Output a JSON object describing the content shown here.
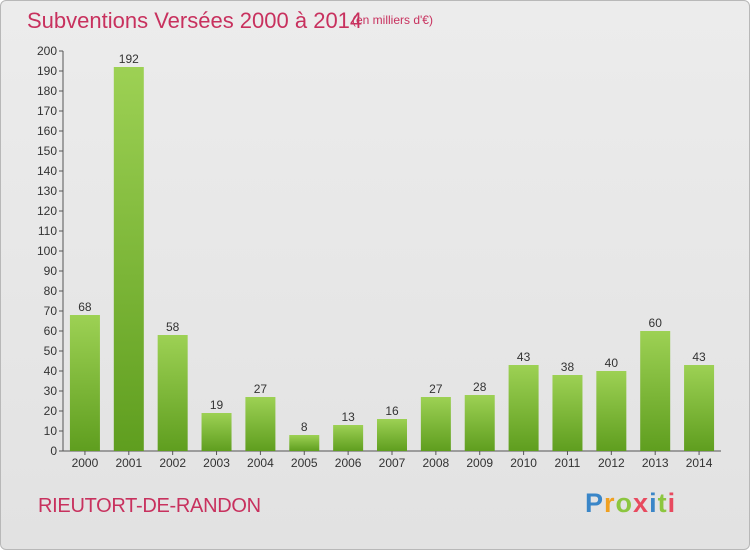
{
  "header": {
    "title": "Subventions Versées 2000 à 2014",
    "unit": "(en milliers d'€)"
  },
  "footer": {
    "commune": "RIEUTORT-DE-RANDON",
    "logo_letters": [
      {
        "char": "P",
        "color": "#3a86c8"
      },
      {
        "char": "r",
        "color": "#f0a020"
      },
      {
        "char": "o",
        "color": "#8cc63f"
      },
      {
        "char": "x",
        "color": "#e84a5f"
      },
      {
        "char": "i",
        "color": "#3a86c8"
      },
      {
        "char": "t",
        "color": "#8cc63f"
      },
      {
        "char": "i",
        "color": "#e84a5f"
      }
    ]
  },
  "chart_data": {
    "type": "bar",
    "title": "Subventions Versées 2000 à 2014",
    "unit": "(en milliers d'€)",
    "categories": [
      "2000",
      "2001",
      "2002",
      "2003",
      "2004",
      "2005",
      "2006",
      "2007",
      "2008",
      "2009",
      "2010",
      "2011",
      "2012",
      "2013",
      "2014"
    ],
    "values": [
      68,
      192,
      58,
      19,
      27,
      8,
      13,
      16,
      27,
      28,
      43,
      38,
      40,
      60,
      43
    ],
    "ylim": [
      0,
      200
    ],
    "ytick_step": 10,
    "grid": false,
    "bar_color_top": "#9dd154",
    "bar_color_bottom": "#5f9e1f"
  }
}
